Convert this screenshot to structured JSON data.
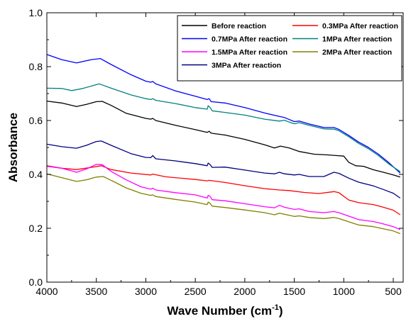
{
  "chart_data": {
    "type": "line",
    "xlabel": "Wave Number (cm",
    "xlabel_sup": "-1",
    "xlabel_close": ")",
    "ylabel": "Absorbance",
    "xlim": [
      4000,
      400
    ],
    "ylim": [
      0.0,
      1.0
    ],
    "x_reversed": true,
    "x_ticks": [
      4000,
      3500,
      3000,
      2500,
      2000,
      1500,
      1000,
      500
    ],
    "x_tick_labels": [
      "4000",
      "3500",
      "3000",
      "2500",
      "2000",
      "1500",
      "1000",
      "500"
    ],
    "y_ticks": [
      0.0,
      0.2,
      0.4,
      0.6,
      0.8,
      1.0
    ],
    "y_tick_labels": [
      "0.0",
      "0.2",
      "0.4",
      "0.6",
      "0.8",
      "1.0"
    ],
    "grid": false,
    "legend_position": "top-right",
    "legend_columns": 2,
    "series": [
      {
        "name": "Before reaction",
        "color": "#000000",
        "points": [
          [
            4000,
            0.672
          ],
          [
            3850,
            0.665
          ],
          [
            3700,
            0.652
          ],
          [
            3600,
            0.66
          ],
          [
            3500,
            0.67
          ],
          [
            3440,
            0.671
          ],
          [
            3350,
            0.656
          ],
          [
            3200,
            0.627
          ],
          [
            3000,
            0.608
          ],
          [
            2950,
            0.605
          ],
          [
            2930,
            0.608
          ],
          [
            2900,
            0.6
          ],
          [
            2700,
            0.582
          ],
          [
            2500,
            0.566
          ],
          [
            2380,
            0.556
          ],
          [
            2360,
            0.56
          ],
          [
            2340,
            0.553
          ],
          [
            2200,
            0.546
          ],
          [
            2000,
            0.53
          ],
          [
            1800,
            0.51
          ],
          [
            1700,
            0.498
          ],
          [
            1640,
            0.505
          ],
          [
            1550,
            0.498
          ],
          [
            1450,
            0.485
          ],
          [
            1300,
            0.475
          ],
          [
            1150,
            0.472
          ],
          [
            1080,
            0.47
          ],
          [
            1000,
            0.468
          ],
          [
            950,
            0.445
          ],
          [
            880,
            0.432
          ],
          [
            800,
            0.43
          ],
          [
            700,
            0.417
          ],
          [
            600,
            0.408
          ],
          [
            500,
            0.398
          ],
          [
            430,
            0.39
          ]
        ]
      },
      {
        "name": "0.3MPa After reaction",
        "color": "#ff0000",
        "points": [
          [
            4000,
            0.432
          ],
          [
            3850,
            0.423
          ],
          [
            3700,
            0.418
          ],
          [
            3550,
            0.426
          ],
          [
            3450,
            0.432
          ],
          [
            3350,
            0.418
          ],
          [
            3150,
            0.405
          ],
          [
            2950,
            0.398
          ],
          [
            2930,
            0.401
          ],
          [
            2800,
            0.391
          ],
          [
            2500,
            0.381
          ],
          [
            2380,
            0.376
          ],
          [
            2360,
            0.378
          ],
          [
            2200,
            0.37
          ],
          [
            2000,
            0.358
          ],
          [
            1800,
            0.347
          ],
          [
            1650,
            0.342
          ],
          [
            1550,
            0.34
          ],
          [
            1400,
            0.333
          ],
          [
            1250,
            0.329
          ],
          [
            1100,
            0.336
          ],
          [
            1050,
            0.332
          ],
          [
            950,
            0.305
          ],
          [
            850,
            0.295
          ],
          [
            700,
            0.288
          ],
          [
            600,
            0.278
          ],
          [
            500,
            0.267
          ],
          [
            430,
            0.25
          ]
        ]
      },
      {
        "name": "0.7MPa After reaction",
        "color": "#0000ff",
        "points": [
          [
            4000,
            0.845
          ],
          [
            3850,
            0.826
          ],
          [
            3700,
            0.814
          ],
          [
            3550,
            0.826
          ],
          [
            3460,
            0.83
          ],
          [
            3350,
            0.808
          ],
          [
            3150,
            0.77
          ],
          [
            3000,
            0.746
          ],
          [
            2950,
            0.742
          ],
          [
            2930,
            0.745
          ],
          [
            2900,
            0.736
          ],
          [
            2700,
            0.71
          ],
          [
            2500,
            0.69
          ],
          [
            2380,
            0.678
          ],
          [
            2360,
            0.681
          ],
          [
            2340,
            0.67
          ],
          [
            2200,
            0.665
          ],
          [
            2000,
            0.648
          ],
          [
            1800,
            0.628
          ],
          [
            1650,
            0.615
          ],
          [
            1600,
            0.611
          ],
          [
            1500,
            0.596
          ],
          [
            1450,
            0.598
          ],
          [
            1350,
            0.587
          ],
          [
            1200,
            0.574
          ],
          [
            1100,
            0.574
          ],
          [
            1050,
            0.567
          ],
          [
            950,
            0.545
          ],
          [
            850,
            0.52
          ],
          [
            750,
            0.5
          ],
          [
            650,
            0.475
          ],
          [
            550,
            0.445
          ],
          [
            430,
            0.405
          ]
        ]
      },
      {
        "name": "1MPa After reaction",
        "color": "#008080",
        "points": [
          [
            4000,
            0.72
          ],
          [
            3850,
            0.719
          ],
          [
            3750,
            0.711
          ],
          [
            3650,
            0.718
          ],
          [
            3550,
            0.728
          ],
          [
            3470,
            0.736
          ],
          [
            3350,
            0.72
          ],
          [
            3150,
            0.695
          ],
          [
            3000,
            0.681
          ],
          [
            2950,
            0.678
          ],
          [
            2930,
            0.681
          ],
          [
            2900,
            0.675
          ],
          [
            2700,
            0.663
          ],
          [
            2500,
            0.648
          ],
          [
            2380,
            0.642
          ],
          [
            2370,
            0.655
          ],
          [
            2350,
            0.648
          ],
          [
            2330,
            0.636
          ],
          [
            2200,
            0.63
          ],
          [
            2000,
            0.62
          ],
          [
            1800,
            0.605
          ],
          [
            1650,
            0.598
          ],
          [
            1600,
            0.601
          ],
          [
            1550,
            0.594
          ],
          [
            1500,
            0.588
          ],
          [
            1450,
            0.592
          ],
          [
            1350,
            0.582
          ],
          [
            1200,
            0.569
          ],
          [
            1100,
            0.568
          ],
          [
            1050,
            0.562
          ],
          [
            950,
            0.54
          ],
          [
            850,
            0.515
          ],
          [
            750,
            0.495
          ],
          [
            650,
            0.47
          ],
          [
            550,
            0.44
          ],
          [
            430,
            0.41
          ]
        ]
      },
      {
        "name": "1.5MPa After reaction",
        "color": "#ff00ff",
        "points": [
          [
            4000,
            0.43
          ],
          [
            3850,
            0.423
          ],
          [
            3700,
            0.408
          ],
          [
            3600,
            0.42
          ],
          [
            3500,
            0.437
          ],
          [
            3440,
            0.436
          ],
          [
            3350,
            0.411
          ],
          [
            3200,
            0.38
          ],
          [
            3050,
            0.354
          ],
          [
            2950,
            0.345
          ],
          [
            2930,
            0.349
          ],
          [
            2900,
            0.342
          ],
          [
            2700,
            0.332
          ],
          [
            2500,
            0.324
          ],
          [
            2380,
            0.312
          ],
          [
            2370,
            0.322
          ],
          [
            2350,
            0.318
          ],
          [
            2330,
            0.306
          ],
          [
            2200,
            0.302
          ],
          [
            2000,
            0.291
          ],
          [
            1800,
            0.28
          ],
          [
            1700,
            0.276
          ],
          [
            1650,
            0.285
          ],
          [
            1600,
            0.278
          ],
          [
            1500,
            0.27
          ],
          [
            1450,
            0.272
          ],
          [
            1350,
            0.262
          ],
          [
            1200,
            0.258
          ],
          [
            1100,
            0.262
          ],
          [
            1050,
            0.258
          ],
          [
            950,
            0.245
          ],
          [
            850,
            0.232
          ],
          [
            700,
            0.225
          ],
          [
            600,
            0.216
          ],
          [
            500,
            0.206
          ],
          [
            430,
            0.195
          ]
        ]
      },
      {
        "name": "2MPa After reaction",
        "color": "#808000",
        "points": [
          [
            4000,
            0.402
          ],
          [
            3850,
            0.388
          ],
          [
            3700,
            0.374
          ],
          [
            3600,
            0.38
          ],
          [
            3500,
            0.39
          ],
          [
            3430,
            0.392
          ],
          [
            3350,
            0.378
          ],
          [
            3200,
            0.35
          ],
          [
            3050,
            0.33
          ],
          [
            2950,
            0.322
          ],
          [
            2930,
            0.324
          ],
          [
            2900,
            0.318
          ],
          [
            2700,
            0.307
          ],
          [
            2500,
            0.297
          ],
          [
            2380,
            0.288
          ],
          [
            2370,
            0.297
          ],
          [
            2350,
            0.292
          ],
          [
            2330,
            0.282
          ],
          [
            2200,
            0.277
          ],
          [
            2000,
            0.268
          ],
          [
            1800,
            0.258
          ],
          [
            1700,
            0.25
          ],
          [
            1650,
            0.256
          ],
          [
            1600,
            0.252
          ],
          [
            1500,
            0.244
          ],
          [
            1450,
            0.246
          ],
          [
            1350,
            0.24
          ],
          [
            1200,
            0.236
          ],
          [
            1100,
            0.24
          ],
          [
            1050,
            0.236
          ],
          [
            950,
            0.224
          ],
          [
            850,
            0.212
          ],
          [
            700,
            0.206
          ],
          [
            600,
            0.198
          ],
          [
            500,
            0.19
          ],
          [
            430,
            0.18
          ]
        ]
      },
      {
        "name": "3MPa After reaction",
        "color": "#000080",
        "points": [
          [
            4000,
            0.512
          ],
          [
            3850,
            0.503
          ],
          [
            3700,
            0.497
          ],
          [
            3600,
            0.508
          ],
          [
            3500,
            0.522
          ],
          [
            3450,
            0.524
          ],
          [
            3350,
            0.508
          ],
          [
            3150,
            0.477
          ],
          [
            3000,
            0.463
          ],
          [
            2950,
            0.462
          ],
          [
            2930,
            0.47
          ],
          [
            2900,
            0.458
          ],
          [
            2700,
            0.45
          ],
          [
            2500,
            0.44
          ],
          [
            2380,
            0.432
          ],
          [
            2370,
            0.442
          ],
          [
            2350,
            0.436
          ],
          [
            2330,
            0.426
          ],
          [
            2200,
            0.427
          ],
          [
            2000,
            0.416
          ],
          [
            1800,
            0.405
          ],
          [
            1700,
            0.402
          ],
          [
            1650,
            0.408
          ],
          [
            1600,
            0.402
          ],
          [
            1500,
            0.398
          ],
          [
            1450,
            0.4
          ],
          [
            1350,
            0.392
          ],
          [
            1200,
            0.392
          ],
          [
            1100,
            0.408
          ],
          [
            1050,
            0.404
          ],
          [
            950,
            0.386
          ],
          [
            850,
            0.371
          ],
          [
            700,
            0.357
          ],
          [
            600,
            0.344
          ],
          [
            500,
            0.33
          ],
          [
            430,
            0.312
          ]
        ]
      }
    ]
  }
}
